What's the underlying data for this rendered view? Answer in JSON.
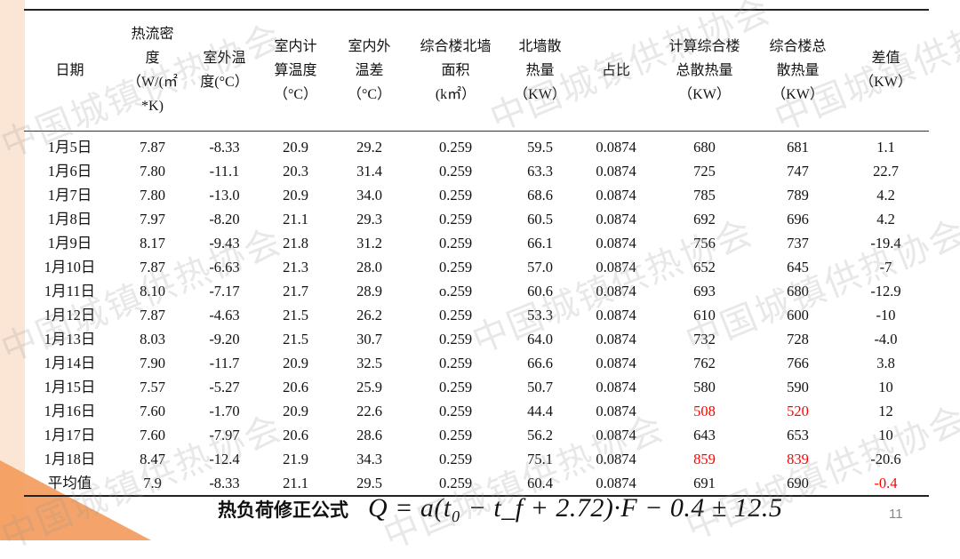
{
  "watermark": "中国城镇供热协会",
  "table": {
    "headers": [
      "日期",
      "热流密\n度\n（W/(㎡\n*K)",
      "室外温\n度(°C）",
      "室内计\n算温度\n（°C）",
      "室内外\n温差\n（°C）",
      "综合楼北墙\n面积\n(k㎡）",
      "北墙散\n热量\n（KW）",
      "占比",
      "计算综合楼\n总散热量\n（KW）",
      "综合楼总\n散热量\n（KW）",
      "差值\n（KW）"
    ],
    "rows": [
      [
        "1月5日",
        "7.87",
        "-8.33",
        "20.9",
        "29.2",
        "0.259",
        "59.5",
        "0.0874",
        "680",
        "681",
        "1.1"
      ],
      [
        "1月6日",
        "7.80",
        "-11.1",
        "20.3",
        "31.4",
        "0.259",
        "63.3",
        "0.0874",
        "725",
        "747",
        "22.7"
      ],
      [
        "1月7日",
        "7.80",
        "-13.0",
        "20.9",
        "34.0",
        "0.259",
        "68.6",
        "0.0874",
        "785",
        "789",
        "4.2"
      ],
      [
        "1月8日",
        "7.97",
        "-8.20",
        "21.1",
        "29.3",
        "0.259",
        "60.5",
        "0.0874",
        "692",
        "696",
        "4.2"
      ],
      [
        "1月9日",
        "8.17",
        "-9.43",
        "21.8",
        "31.2",
        "0.259",
        "66.1",
        "0.0874",
        "756",
        "737",
        "-19.4"
      ],
      [
        "1月10日",
        "7.87",
        "-6.63",
        "21.3",
        "28.0",
        "0.259",
        "57.0",
        "0.0874",
        "652",
        "645",
        "-7"
      ],
      [
        "1月11日",
        "8.10",
        "-7.17",
        "21.7",
        "28.9",
        "o.259",
        "60.6",
        "0.0874",
        "693",
        "680",
        "-12.9"
      ],
      [
        "1月12日",
        "7.87",
        "-4.63",
        "21.5",
        "26.2",
        "0.259",
        "53.3",
        "0.0874",
        "610",
        "600",
        "-10"
      ],
      [
        "1月13日",
        "8.03",
        "-9.20",
        "21.5",
        "30.7",
        "0.259",
        "64.0",
        "0.0874",
        "732",
        "728",
        "-4.0"
      ],
      [
        "1月14日",
        "7.90",
        "-11.7",
        "20.9",
        "32.5",
        "0.259",
        "66.6",
        "0.0874",
        "762",
        "766",
        "3.8"
      ],
      [
        "1月15日",
        "7.57",
        "-5.27",
        "20.6",
        "25.9",
        "0.259",
        "50.7",
        "0.0874",
        "580",
        "590",
        "10"
      ],
      [
        "1月16日",
        "7.60",
        "-1.70",
        "20.9",
        "22.6",
        "0.259",
        "44.4",
        "0.0874",
        "508",
        "520",
        "12"
      ],
      [
        "1月17日",
        "7.60",
        "-7.97",
        "20.6",
        "28.6",
        "0.259",
        "56.2",
        "0.0874",
        "643",
        "653",
        "10"
      ],
      [
        "1月18日",
        "8.47",
        "-12.4",
        "21.9",
        "34.3",
        "0.259",
        "75.1",
        "0.0874",
        "859",
        "839",
        "-20.6"
      ],
      [
        "平均值",
        "7.9",
        "-8.33",
        "21.1",
        "29.5",
        "0.259",
        "60.4",
        "0.0874",
        "691",
        "690",
        "-0.4"
      ]
    ],
    "red_cells": [
      "11-8",
      "11-9",
      "13-8",
      "13-9",
      "14-10"
    ],
    "highlight_color": "#ff0000"
  },
  "formula": {
    "label": "热负荷修正公式",
    "expression": "Q = a(t₀ − t_f + 2.72)·F − 0.4 ± 12.5"
  },
  "page_number": "11"
}
